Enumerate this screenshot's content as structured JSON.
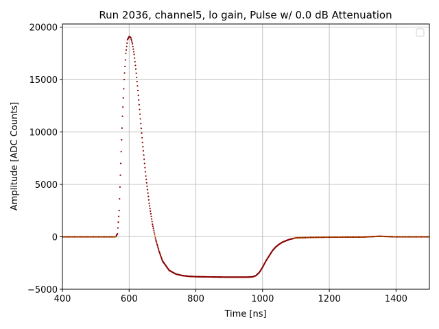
{
  "chart_data": {
    "type": "scatter",
    "title": "Run 2036, channel5, lo gain, Pulse w/ 0.0 dB Attenuation",
    "xlabel": "Time [ns]",
    "ylabel": "Amplitude [ADC Counts]",
    "xlim": [
      400,
      1500
    ],
    "ylim": [
      -5000,
      20300
    ],
    "xticks": [
      400,
      600,
      800,
      1000,
      1200,
      1400
    ],
    "yticks": [
      -5000,
      0,
      5000,
      10000,
      15000,
      20000
    ],
    "grid": true,
    "legend": {
      "position": "top-right",
      "entries": []
    },
    "colors": {
      "points": "#8b0000",
      "baseline_noise": "#c8a000",
      "grid": "#b0b0b0"
    },
    "series": [
      {
        "color": "#8b0000",
        "x": [
          400,
          450,
          500,
          540,
          560,
          565,
          570,
          575,
          580,
          585,
          590,
          595,
          600,
          605,
          610,
          615,
          620,
          625,
          630,
          640,
          650,
          660,
          670,
          680,
          690,
          700,
          720,
          740,
          760,
          780,
          800,
          850,
          900,
          950,
          970,
          980,
          990,
          1000,
          1010,
          1020,
          1030,
          1040,
          1050,
          1060,
          1080,
          1100,
          1150,
          1200,
          1300,
          1350,
          1400,
          1500
        ],
        "y": [
          0,
          0,
          0,
          0,
          0,
          300,
          2500,
          7000,
          11500,
          15000,
          17500,
          18800,
          19100,
          19000,
          18400,
          17400,
          16000,
          14400,
          12600,
          9000,
          5800,
          3200,
          1200,
          -300,
          -1400,
          -2300,
          -3200,
          -3550,
          -3700,
          -3770,
          -3800,
          -3830,
          -3850,
          -3850,
          -3820,
          -3700,
          -3400,
          -2900,
          -2300,
          -1800,
          -1300,
          -950,
          -700,
          -500,
          -250,
          -100,
          -50,
          -30,
          -20,
          50,
          0,
          0
        ]
      }
    ]
  }
}
